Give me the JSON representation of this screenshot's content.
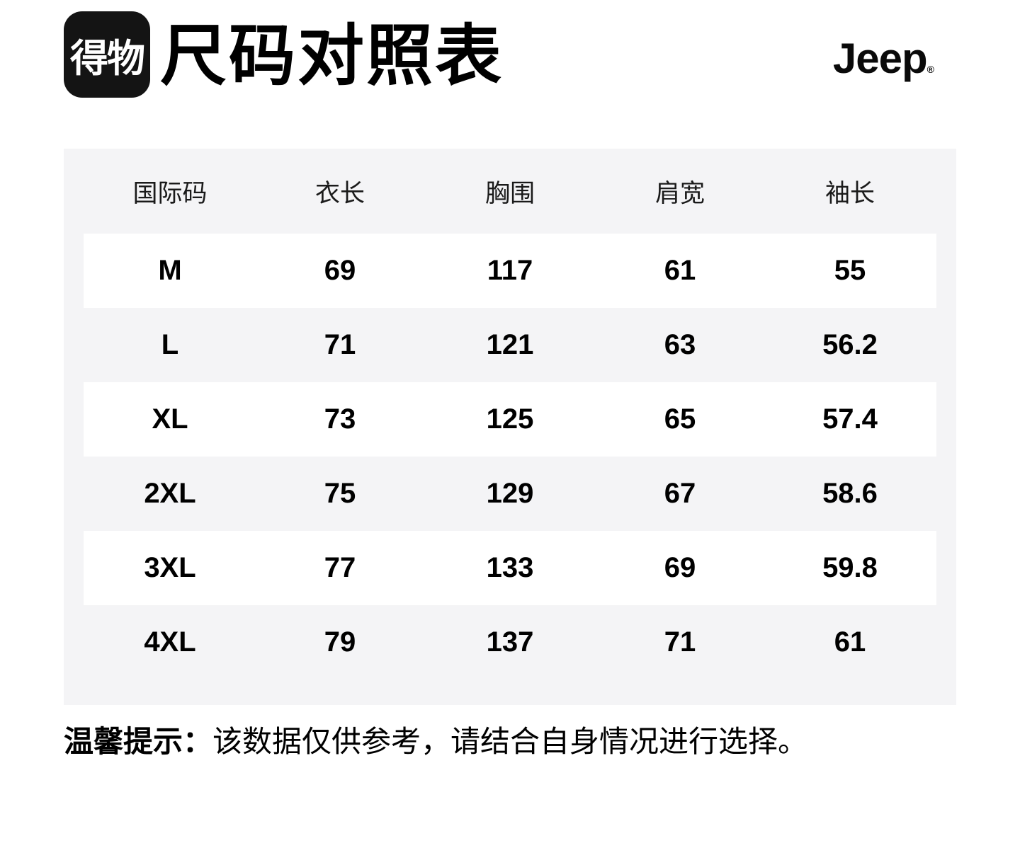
{
  "colors": {
    "page_bg": "#ffffff",
    "table_bg": "#f4f4f6",
    "stripe_bg": "#ffffff",
    "logo_bg": "#141414",
    "text": "#000000"
  },
  "header": {
    "logo_text": "得物",
    "title": "尺码对照表",
    "brand": "Jeep",
    "brand_reg": "®"
  },
  "table": {
    "columns": [
      "国际码",
      "衣长",
      "胸围",
      "肩宽",
      "袖长"
    ],
    "rows": [
      {
        "size": "M",
        "values": [
          "69",
          "117",
          "61",
          "55"
        ]
      },
      {
        "size": "L",
        "values": [
          "71",
          "121",
          "63",
          "56.2"
        ]
      },
      {
        "size": "XL",
        "values": [
          "73",
          "125",
          "65",
          "57.4"
        ]
      },
      {
        "size": "2XL",
        "values": [
          "75",
          "129",
          "67",
          "58.6"
        ]
      },
      {
        "size": "3XL",
        "values": [
          "77",
          "133",
          "69",
          "59.8"
        ]
      },
      {
        "size": "4XL",
        "values": [
          "79",
          "137",
          "71",
          "61"
        ]
      }
    ]
  },
  "footer": {
    "tip_label": "温馨提示：",
    "tip_text": "该数据仅供参考，请结合自身情况进行选择。"
  },
  "chart_data": {
    "type": "table",
    "title": "尺码对照表",
    "columns": [
      "国际码",
      "衣长",
      "胸围",
      "肩宽",
      "袖长"
    ],
    "rows": [
      [
        "M",
        69,
        117,
        61,
        55
      ],
      [
        "L",
        71,
        121,
        63,
        56.2
      ],
      [
        "XL",
        73,
        125,
        65,
        57.4
      ],
      [
        "2XL",
        75,
        129,
        67,
        58.6
      ],
      [
        "3XL",
        77,
        133,
        69,
        59.8
      ],
      [
        "4XL",
        79,
        137,
        71,
        61
      ]
    ]
  }
}
